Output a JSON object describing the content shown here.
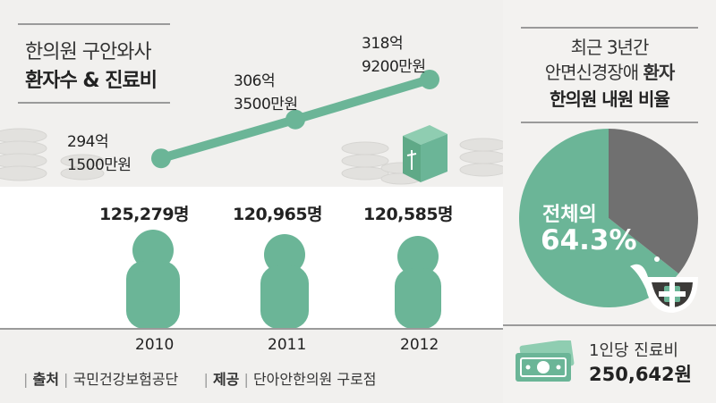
{
  "colors": {
    "accent": "#6bb597",
    "pie_rest": "#707070",
    "background": "#f1f0ee",
    "white_band": "#ffffff"
  },
  "left": {
    "title_line1": "한의원 구안와사",
    "title_line2": "환자수 & 진료비",
    "years": [
      "2010",
      "2011",
      "2012"
    ],
    "costs": [
      {
        "line1": "294억",
        "line2": "1500만원"
      },
      {
        "line1": "306억",
        "line2": "3500만원"
      },
      {
        "line1": "318억",
        "line2": "9200만원"
      }
    ],
    "patients": [
      "125,279명",
      "120,965명",
      "120,585명"
    ],
    "source_label": "출처",
    "source_value": "국민건강보험공단",
    "provider_label": "제공",
    "provider_value": "단아안한의원 구로점"
  },
  "right": {
    "title_line1": "최근 3년간",
    "title_line2_a": "안면신경장애 ",
    "title_line2_b": "환자",
    "title_line3": "한의원 내원 비율",
    "pie_label_line1": "전체의",
    "pie_label_line2": "64.3%",
    "cost_label": "1인당 진료비",
    "cost_value": "250,642원"
  },
  "chart_data": [
    {
      "type": "line",
      "title": "한의원 구안와사 환자수 & 진료비",
      "x": [
        "2010",
        "2011",
        "2012"
      ],
      "series": [
        {
          "name": "진료비",
          "values": [
            29415000000,
            30635000000,
            31892000000
          ],
          "labels": [
            "294억 1500만원",
            "306억 3500만원",
            "318억 9200만원"
          ]
        }
      ]
    },
    {
      "type": "bar",
      "categories": [
        "2010",
        "2011",
        "2012"
      ],
      "series": [
        {
          "name": "환자수",
          "values": [
            125279,
            120965,
            120585
          ]
        }
      ]
    },
    {
      "type": "pie",
      "title": "최근 3년간 안면신경장애 환자 한의원 내원 비율",
      "slices": [
        {
          "label": "전체의 64.3%",
          "value": 64.3
        },
        {
          "label": "",
          "value": 35.7
        }
      ]
    }
  ]
}
